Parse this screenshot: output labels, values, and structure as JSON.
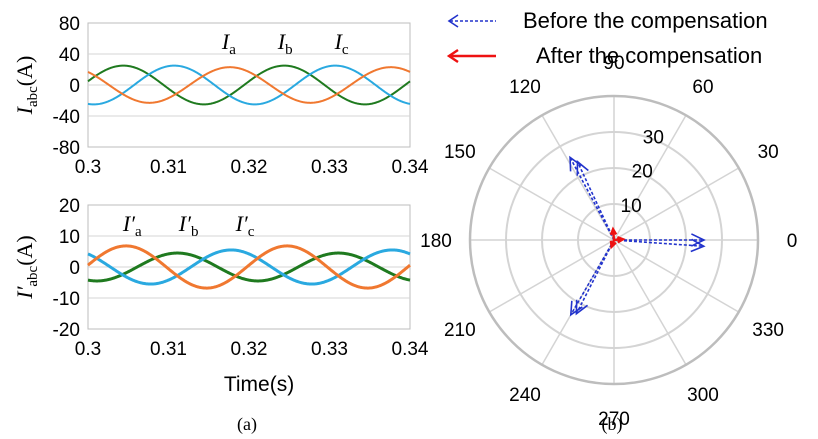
{
  "colors": {
    "ia": "#1f7a1f",
    "ib": "#2aa9e0",
    "ic": "#f07830",
    "before": "#2233cc",
    "after": "#ee1111",
    "grid": "#d4d4d4",
    "frame": "#bdbdbd"
  },
  "chart_data": [
    {
      "type": "line",
      "panel": "(a)",
      "ylabel": {
        "base": "I",
        "sub": "abc",
        "unit": "(A)"
      },
      "xlabel": "",
      "xlim": [
        0.3,
        0.34
      ],
      "ylim": [
        -80,
        80
      ],
      "xticks": [
        "0.3",
        "0.31",
        "0.32",
        "0.33",
        "0.34"
      ],
      "yticks": [
        "80",
        "40",
        "0",
        "-40",
        "-80"
      ],
      "ytick_values": [
        80,
        40,
        0,
        -40,
        -80
      ],
      "frequency_hz": 50,
      "series": [
        {
          "name": "I",
          "sub": "a",
          "amplitude": 25,
          "phase_deg": 11,
          "color_key": "ia"
        },
        {
          "name": "I",
          "sub": "b",
          "amplitude": 25,
          "phase_deg": -103,
          "color_key": "ib"
        },
        {
          "name": "I",
          "sub": "c",
          "amplitude": 23,
          "phase_deg": 133,
          "color_key": "ic"
        }
      ]
    },
    {
      "type": "line",
      "panel": "(a)",
      "ylabel": {
        "base": "I′",
        "sub": "abc",
        "unit": "(A)"
      },
      "xlabel": "Time(s)",
      "xlim": [
        0.3,
        0.34
      ],
      "ylim": [
        -20,
        20
      ],
      "xticks": [
        "0.3",
        "0.31",
        "0.32",
        "0.33",
        "0.34"
      ],
      "yticks": [
        "20",
        "10",
        "0",
        "-10",
        "-20"
      ],
      "ytick_values": [
        20,
        10,
        0,
        -10,
        -20
      ],
      "frequency_hz": 50,
      "series": [
        {
          "name": "I′",
          "sub": "a",
          "amplitude": 4.5,
          "phase_deg": -110,
          "color_key": "ia"
        },
        {
          "name": "I′",
          "sub": "b",
          "amplitude": 5.5,
          "phase_deg": -230,
          "color_key": "ib"
        },
        {
          "name": "I′",
          "sub": "c",
          "amplitude": 6.8,
          "phase_deg": 5,
          "color_key": "ic"
        }
      ]
    },
    {
      "type": "polar",
      "panel": "(b)",
      "r_max": 40,
      "r_ticks": [
        10,
        20,
        30
      ],
      "r_tick_labels": [
        "10",
        "20",
        "30"
      ],
      "angle_labels": [
        {
          "deg": 0,
          "text": "0"
        },
        {
          "deg": 30,
          "text": "30"
        },
        {
          "deg": 60,
          "text": "60"
        },
        {
          "deg": 90,
          "text": "90"
        },
        {
          "deg": 120,
          "text": "120"
        },
        {
          "deg": 150,
          "text": "150"
        },
        {
          "deg": 180,
          "text": "180"
        },
        {
          "deg": 210,
          "text": "210"
        },
        {
          "deg": 240,
          "text": "240"
        },
        {
          "deg": 270,
          "text": "270"
        },
        {
          "deg": 300,
          "text": "300"
        },
        {
          "deg": 330,
          "text": "330"
        }
      ],
      "legend": [
        {
          "label": "Before the compensation",
          "style": "dashed",
          "color_key": "before"
        },
        {
          "label": "After the compensation",
          "style": "solid",
          "color_key": "after"
        }
      ],
      "series": [
        {
          "name": "Before the compensation",
          "vectors": [
            {
              "angle_deg": 0,
              "magnitude": 25
            },
            {
              "angle_deg": 118,
              "magnitude": 26
            },
            {
              "angle_deg": 240,
              "magnitude": 24
            },
            {
              "angle_deg": 356,
              "magnitude": 25
            },
            {
              "angle_deg": 115,
              "magnitude": 24
            },
            {
              "angle_deg": 243,
              "magnitude": 23
            }
          ]
        },
        {
          "name": "After the compensation",
          "vectors": [
            {
              "angle_deg": 5,
              "magnitude": 2.5
            },
            {
              "angle_deg": 95,
              "magnitude": 3
            },
            {
              "angle_deg": 250,
              "magnitude": 2
            }
          ]
        }
      ]
    }
  ]
}
